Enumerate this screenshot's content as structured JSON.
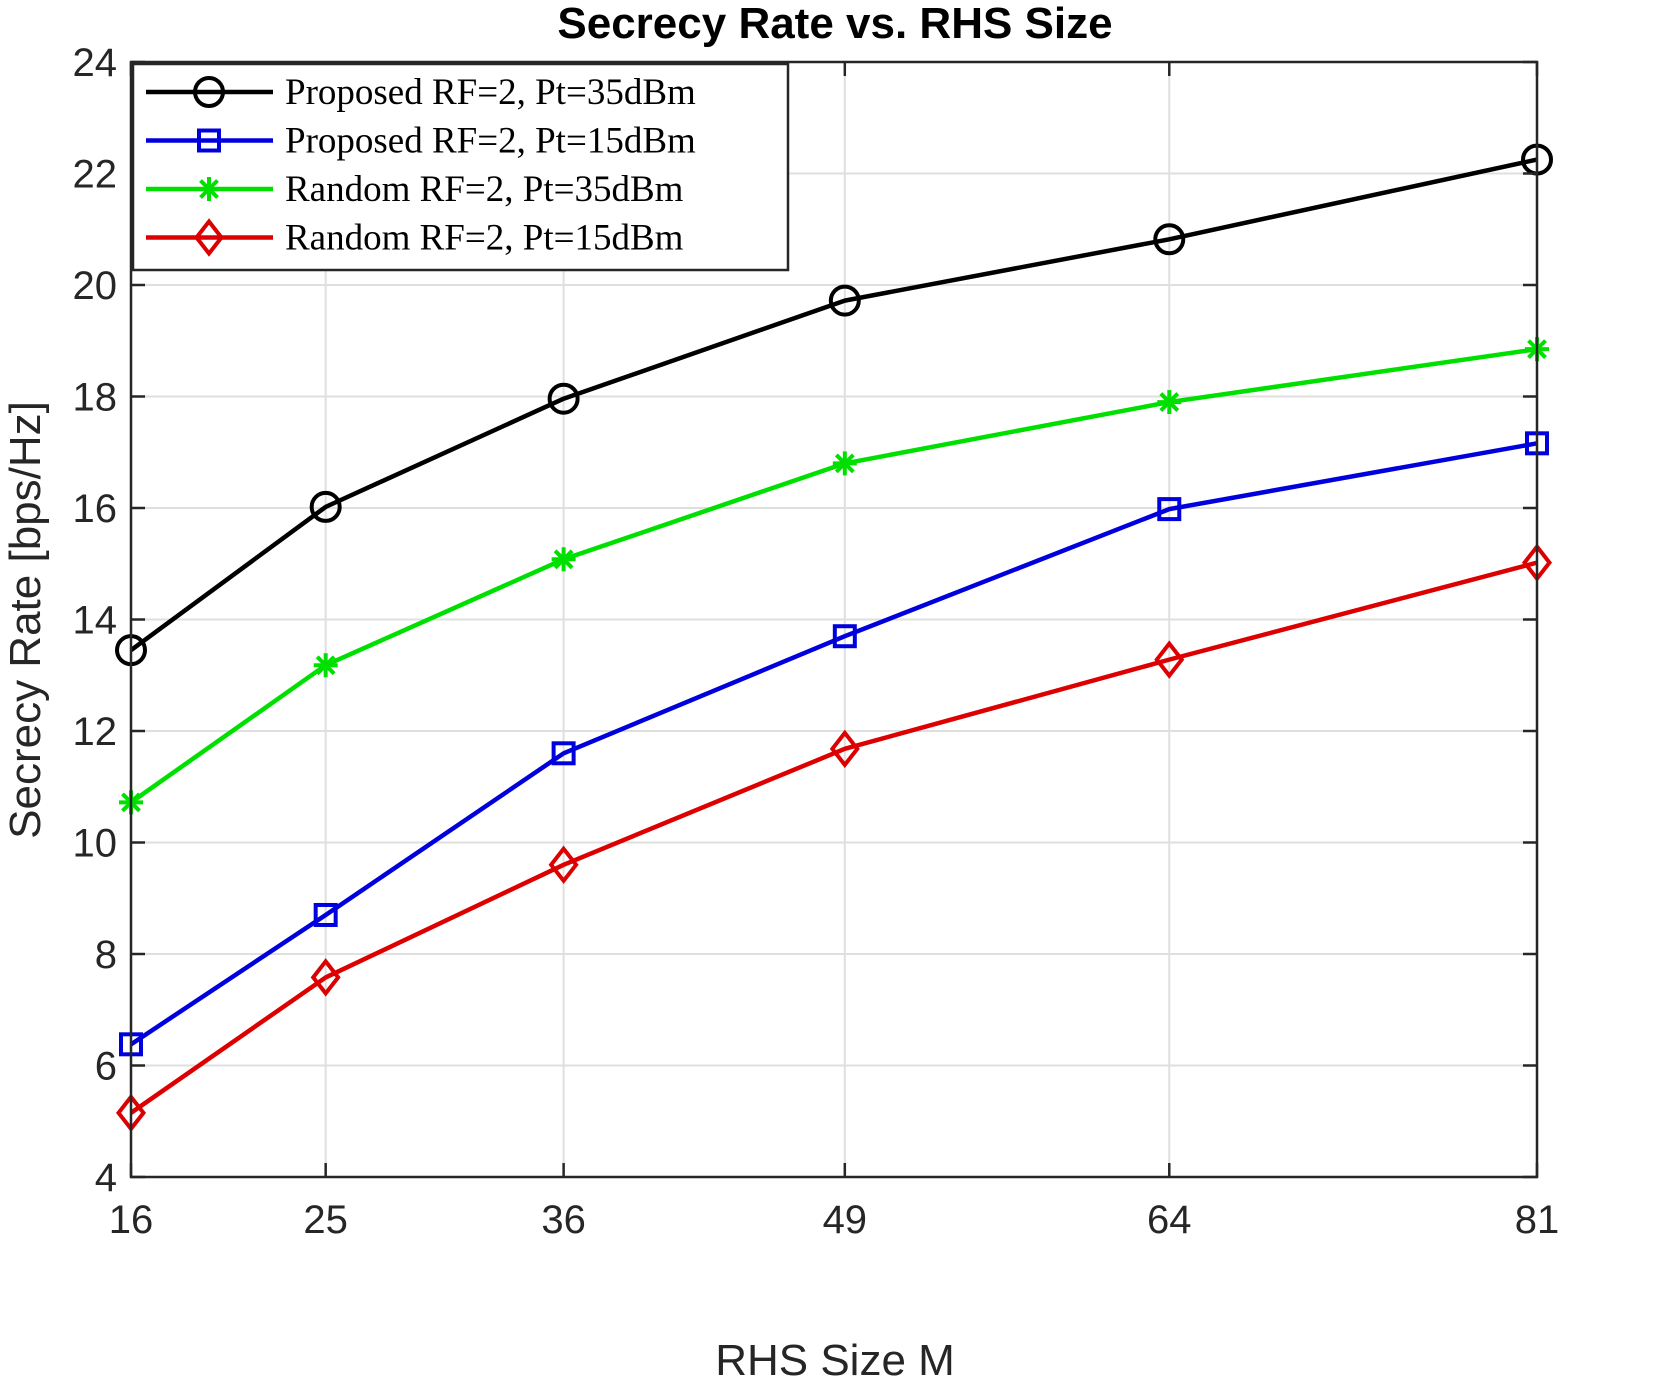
{
  "chart_data": {
    "type": "line",
    "title": "Secrecy Rate vs. RHS Size",
    "xlabel": "RHS Size M",
    "ylabel": "Secrecy Rate [bps/Hz]",
    "x": [
      16,
      25,
      36,
      49,
      64,
      81
    ],
    "xticks": [
      "16",
      "25",
      "36",
      "49",
      "64",
      "81"
    ],
    "xlim": [
      16,
      81
    ],
    "ylim": [
      4,
      24
    ],
    "yticks": [
      4,
      6,
      8,
      10,
      12,
      14,
      16,
      18,
      20,
      22,
      24
    ],
    "grid": true,
    "legend_position": "top-left",
    "series": [
      {
        "name": "Proposed RF=2, Pt=35dBm",
        "color": "#000000",
        "marker": "circle",
        "values": [
          13.45,
          16.02,
          17.96,
          19.72,
          20.82,
          22.25
        ]
      },
      {
        "name": "Proposed RF=2, Pt=15dBm",
        "color": "#0000dd",
        "marker": "square",
        "values": [
          6.38,
          8.7,
          11.6,
          13.7,
          15.98,
          17.16
        ]
      },
      {
        "name": "Random RF=2, Pt=35dBm",
        "color": "#00e000",
        "marker": "star",
        "values": [
          10.72,
          13.18,
          15.08,
          16.8,
          17.9,
          18.85
        ]
      },
      {
        "name": "Random RF=2, Pt=15dBm",
        "color": "#dd0000",
        "marker": "diamond",
        "values": [
          5.15,
          7.58,
          9.6,
          11.68,
          13.28,
          15.02
        ]
      }
    ]
  }
}
